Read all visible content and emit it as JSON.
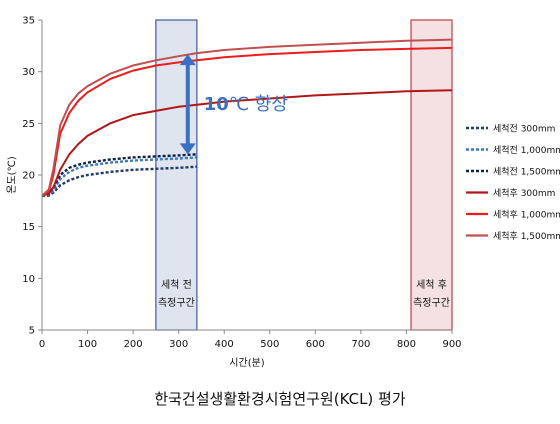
{
  "chart_data": {
    "type": "line",
    "xlabel": "시간(분)",
    "ylabel": "온도(℃)",
    "xlim": [
      0,
      900
    ],
    "ylim": [
      5,
      35
    ],
    "x_ticks": [
      "0",
      "100",
      "200",
      "300",
      "400",
      "500",
      "600",
      "700",
      "800",
      "900"
    ],
    "y_ticks": [
      "5",
      "10",
      "15",
      "20",
      "25",
      "30",
      "35"
    ],
    "grid": false,
    "legend_position": "right",
    "x": [
      0,
      15,
      25,
      40,
      60,
      80,
      100,
      150,
      200,
      250,
      300,
      340,
      400,
      500,
      600,
      700,
      800,
      900
    ],
    "series": [
      {
        "name": "세척전 300mm",
        "color": "#1f3b6e",
        "style": "dashed",
        "values": [
          18,
          18,
          18.3,
          19,
          19.5,
          19.8,
          20,
          20.3,
          20.5,
          20.6,
          20.7,
          20.8,
          null,
          null,
          null,
          null,
          null,
          null
        ]
      },
      {
        "name": "세척전 1,000mm",
        "color": "#3a78c9",
        "style": "dashed",
        "values": [
          18,
          18.1,
          18.5,
          19.6,
          20.3,
          20.7,
          20.9,
          21.2,
          21.4,
          21.5,
          21.6,
          21.7,
          null,
          null,
          null,
          null,
          null,
          null
        ]
      },
      {
        "name": "세척전 1,500mm",
        "color": "#0f1f4a",
        "style": "dashed",
        "values": [
          18,
          18.2,
          18.8,
          20,
          20.7,
          21,
          21.2,
          21.5,
          21.7,
          21.8,
          21.9,
          22,
          null,
          null,
          null,
          null,
          null,
          null
        ]
      },
      {
        "name": "세척후 300mm",
        "color": "#b01818",
        "style": "solid",
        "values": [
          18,
          18.2,
          18.8,
          20.5,
          22,
          23,
          23.8,
          25,
          25.8,
          26.2,
          26.6,
          26.8,
          27.1,
          27.4,
          27.7,
          27.9,
          28.1,
          28.2
        ]
      },
      {
        "name": "세척후 1,000mm",
        "color": "#ee1c1c",
        "style": "solid",
        "values": [
          18,
          18.4,
          20,
          24,
          26,
          27.2,
          28,
          29.3,
          30.1,
          30.6,
          30.9,
          31.1,
          31.4,
          31.7,
          31.9,
          32.1,
          32.2,
          32.3
        ]
      },
      {
        "name": "세척후 1,500mm",
        "color": "#c05050",
        "style": "solid",
        "values": [
          18,
          18.6,
          20.6,
          24.8,
          26.8,
          27.9,
          28.6,
          29.8,
          30.6,
          31.1,
          31.5,
          31.8,
          32.1,
          32.4,
          32.6,
          32.8,
          33,
          33.1
        ]
      }
    ],
    "regions": [
      {
        "x_range": [
          250,
          340
        ],
        "label_top": "세척 전",
        "label_bottom": "측정구간",
        "color": "#3b5a9e"
      },
      {
        "x_range": [
          810,
          900
        ],
        "label_top": "세척 후",
        "label_bottom": "측정구간",
        "color": "#c0404a"
      }
    ],
    "annotation": {
      "x": 320,
      "y_from": 22,
      "y_to": 31.7,
      "text_bold": "10",
      "text_rest": "℃ 향상",
      "color": "#3a6fc4"
    }
  },
  "footer_text": "한국건설생활환경시험연구원(KCL) 평가"
}
